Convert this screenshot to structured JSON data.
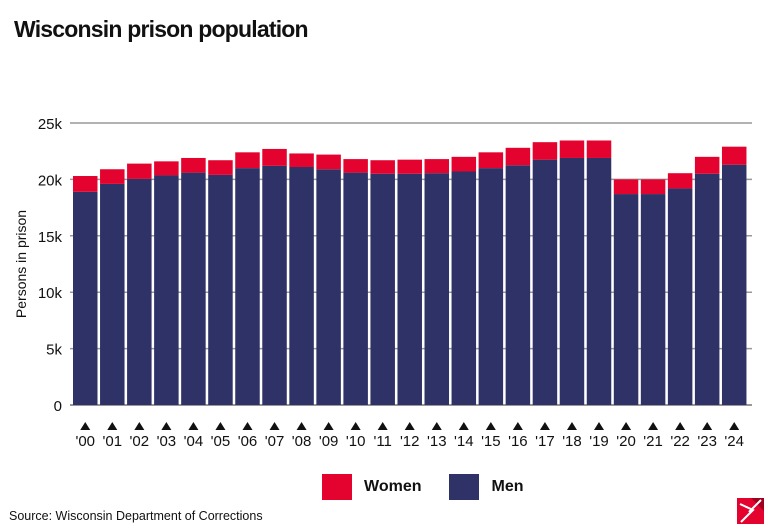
{
  "title": "Wisconsin prison population",
  "source": "Source: Wisconsin Department of Corrections",
  "colors": {
    "women": "#e4032e",
    "men": "#2e3266",
    "grid": "#999999"
  },
  "chart_data": {
    "type": "bar",
    "stacked": true,
    "title": "Wisconsin prison population",
    "xlabel": "",
    "ylabel": "Persons in prison",
    "ylim": [
      0,
      25000
    ],
    "yticks": [
      0,
      5000,
      10000,
      15000,
      20000,
      25000
    ],
    "ytick_labels": [
      "0",
      "5k",
      "10k",
      "15k",
      "20k",
      "25k"
    ],
    "grid": true,
    "legend_placement": "bottom-center",
    "categories": [
      "'00",
      "'01",
      "'02",
      "'03",
      "'04",
      "'05",
      "'06",
      "'07",
      "'08",
      "'09",
      "'10",
      "'11",
      "'12",
      "'13",
      "'14",
      "'15",
      "'16",
      "'17",
      "'18",
      "'19",
      "'20",
      "'21",
      "'22",
      "'23",
      "'24"
    ],
    "series": [
      {
        "name": "Men",
        "values": [
          18900,
          19600,
          20050,
          20350,
          20600,
          20400,
          21000,
          21200,
          21100,
          20900,
          20600,
          20500,
          20500,
          20550,
          20700,
          21000,
          21250,
          21750,
          21900,
          21900,
          18700,
          18700,
          19200,
          20500,
          21300
        ]
      },
      {
        "name": "Women",
        "values": [
          1400,
          1300,
          1350,
          1250,
          1300,
          1300,
          1400,
          1500,
          1200,
          1300,
          1200,
          1200,
          1250,
          1250,
          1300,
          1400,
          1550,
          1550,
          1550,
          1550,
          1300,
          1300,
          1350,
          1500,
          1600
        ]
      }
    ]
  },
  "legend": {
    "women": "Women",
    "men": "Men"
  },
  "logo_icon": "publisher-logo-icon"
}
